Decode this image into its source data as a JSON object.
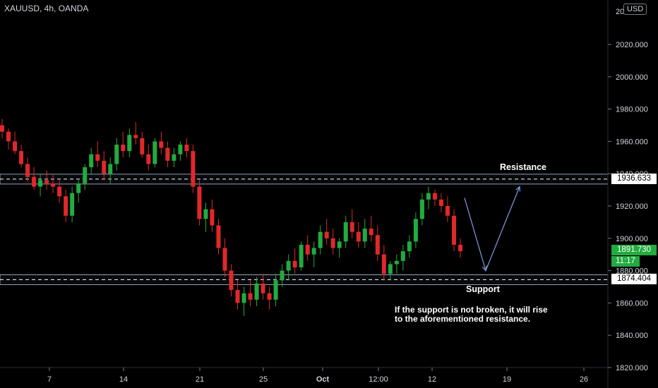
{
  "header": {
    "symbol": "XAUUSD, 4h, OANDA",
    "currency": "USD"
  },
  "chart_data": {
    "type": "candlestick",
    "y_ticks": [
      "2020.000",
      "2000.000",
      "1980.000",
      "1960.000",
      "1940.000",
      "1920.000",
      "1900.000",
      "1880.000",
      "1860.000",
      "1840.000",
      "1820.000"
    ],
    "top_partial_tick": "20",
    "x_ticks": [
      "7",
      "14",
      "21",
      "25",
      "Oct",
      "12:00",
      "12",
      "19",
      "26"
    ],
    "ylim": [
      1820,
      2040
    ],
    "resistance_level": 1936.633,
    "support_level": 1874.404,
    "last_price": 1891.73,
    "price_labels": {
      "resistance": "1936.633",
      "support": "1874.404",
      "last": "1891.730",
      "timer": "11:17"
    },
    "annotations": {
      "resistance": "Resistance",
      "support": "Support",
      "note_line1": "If the support is not broken, it will rise",
      "note_line2": "to the aforementioned resistance."
    },
    "projection_path": [
      1925,
      1880,
      1932
    ],
    "colors": {
      "up": "#22ab3f",
      "down": "#e0282a",
      "level": "#b4c6e0",
      "projection": "#7c9ee0"
    },
    "candles_ohlc": [
      [
        1970,
        1974,
        1962,
        1966
      ],
      [
        1966,
        1968,
        1955,
        1960
      ],
      [
        1960,
        1966,
        1952,
        1954
      ],
      [
        1954,
        1958,
        1944,
        1946
      ],
      [
        1946,
        1950,
        1935,
        1938
      ],
      [
        1938,
        1944,
        1930,
        1932
      ],
      [
        1932,
        1940,
        1926,
        1936
      ],
      [
        1936,
        1942,
        1930,
        1934
      ],
      [
        1934,
        1940,
        1928,
        1932
      ],
      [
        1932,
        1936,
        1922,
        1926
      ],
      [
        1926,
        1930,
        1910,
        1914
      ],
      [
        1914,
        1932,
        1910,
        1928
      ],
      [
        1928,
        1936,
        1922,
        1934
      ],
      [
        1934,
        1946,
        1930,
        1944
      ],
      [
        1944,
        1956,
        1940,
        1952
      ],
      [
        1952,
        1960,
        1944,
        1948
      ],
      [
        1948,
        1954,
        1936,
        1940
      ],
      [
        1940,
        1950,
        1934,
        1946
      ],
      [
        1946,
        1962,
        1942,
        1958
      ],
      [
        1958,
        1966,
        1950,
        1954
      ],
      [
        1954,
        1968,
        1950,
        1964
      ],
      [
        1964,
        1972,
        1958,
        1962
      ],
      [
        1962,
        1966,
        1950,
        1952
      ],
      [
        1952,
        1958,
        1942,
        1946
      ],
      [
        1946,
        1962,
        1944,
        1960
      ],
      [
        1960,
        1966,
        1952,
        1956
      ],
      [
        1956,
        1960,
        1944,
        1948
      ],
      [
        1948,
        1956,
        1944,
        1952
      ],
      [
        1952,
        1960,
        1948,
        1958
      ],
      [
        1958,
        1962,
        1950,
        1954
      ],
      [
        1954,
        1958,
        1928,
        1932
      ],
      [
        1932,
        1936,
        1908,
        1912
      ],
      [
        1912,
        1922,
        1904,
        1918
      ],
      [
        1918,
        1924,
        1904,
        1908
      ],
      [
        1908,
        1912,
        1890,
        1894
      ],
      [
        1894,
        1900,
        1876,
        1880
      ],
      [
        1880,
        1884,
        1864,
        1868
      ],
      [
        1868,
        1874,
        1856,
        1860
      ],
      [
        1860,
        1870,
        1852,
        1866
      ],
      [
        1866,
        1874,
        1858,
        1862
      ],
      [
        1862,
        1876,
        1858,
        1872
      ],
      [
        1872,
        1878,
        1862,
        1866
      ],
      [
        1866,
        1870,
        1856,
        1862
      ],
      [
        1862,
        1878,
        1858,
        1874
      ],
      [
        1874,
        1884,
        1870,
        1880
      ],
      [
        1880,
        1890,
        1874,
        1886
      ],
      [
        1886,
        1894,
        1878,
        1882
      ],
      [
        1882,
        1898,
        1880,
        1896
      ],
      [
        1896,
        1902,
        1886,
        1890
      ],
      [
        1890,
        1898,
        1882,
        1894
      ],
      [
        1894,
        1908,
        1890,
        1904
      ],
      [
        1904,
        1912,
        1896,
        1900
      ],
      [
        1900,
        1906,
        1890,
        1894
      ],
      [
        1894,
        1900,
        1888,
        1898
      ],
      [
        1898,
        1914,
        1894,
        1910
      ],
      [
        1910,
        1918,
        1900,
        1904
      ],
      [
        1904,
        1910,
        1894,
        1898
      ],
      [
        1898,
        1912,
        1894,
        1906
      ],
      [
        1906,
        1914,
        1898,
        1902
      ],
      [
        1902,
        1908,
        1886,
        1890
      ],
      [
        1890,
        1896,
        1874,
        1878
      ],
      [
        1878,
        1886,
        1874,
        1884
      ],
      [
        1884,
        1890,
        1878,
        1886
      ],
      [
        1886,
        1896,
        1880,
        1892
      ],
      [
        1892,
        1902,
        1888,
        1898
      ],
      [
        1898,
        1916,
        1894,
        1912
      ],
      [
        1912,
        1928,
        1908,
        1924
      ],
      [
        1924,
        1932,
        1918,
        1928
      ],
      [
        1928,
        1930,
        1920,
        1924
      ],
      [
        1924,
        1928,
        1916,
        1920
      ],
      [
        1920,
        1926,
        1910,
        1914
      ],
      [
        1914,
        1918,
        1892,
        1896
      ],
      [
        1896,
        1900,
        1888,
        1892
      ]
    ]
  }
}
